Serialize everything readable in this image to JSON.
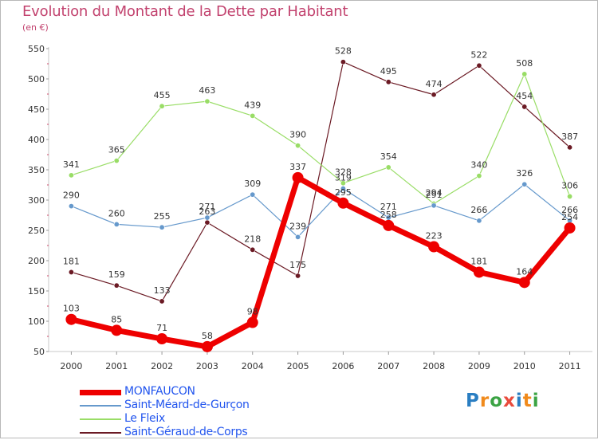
{
  "title": "Evolution du Montant de la Dette par Habitant",
  "unit": "(en €)",
  "logo_text": "Proxiti",
  "chart_data": {
    "type": "line",
    "title": "Evolution du Montant de la Dette par Habitant",
    "ylabel": "(en €)",
    "x": [
      "2000",
      "2001",
      "2002",
      "2003",
      "2004",
      "2005",
      "2006",
      "2007",
      "2008",
      "2009",
      "2010",
      "2011"
    ],
    "ylim": [
      50,
      550
    ],
    "yticks": [
      50,
      100,
      150,
      200,
      250,
      300,
      350,
      400,
      450,
      500,
      550
    ],
    "grid": false,
    "legend_position": "bottom-left",
    "series": [
      {
        "name": "Saint-Géraud-de-Corps",
        "color": "#6b1a24",
        "width": 1.2,
        "marker": 3.2,
        "values": [
          181,
          159,
          133,
          263,
          218,
          175,
          528,
          495,
          474,
          522,
          454,
          387
        ],
        "labels": [
          "181",
          "159",
          "133",
          "263",
          "218",
          "175",
          "528",
          "495",
          "474",
          "522",
          "454",
          "387"
        ]
      },
      {
        "name": "Le Fleix",
        "color": "#99dd66",
        "width": 1.2,
        "marker": 3.2,
        "values": [
          341,
          365,
          455,
          463,
          439,
          390,
          328,
          354,
          294,
          340,
          508,
          306
        ],
        "labels": [
          "341",
          "365",
          "455",
          "463",
          "439",
          "390",
          "328",
          "354",
          "294",
          "340",
          "508",
          "306"
        ]
      },
      {
        "name": "Saint-Méard-de-Gurçon",
        "color": "#6699cc",
        "width": 1.2,
        "marker": 3.2,
        "values": [
          290,
          260,
          255,
          271,
          309,
          239,
          319,
          271,
          291,
          266,
          326,
          266
        ],
        "labels": [
          "290",
          "260",
          "255",
          "271",
          "309",
          "239",
          "319",
          "271",
          "291",
          "266",
          "326",
          "266"
        ]
      },
      {
        "name": "MONFAUCON",
        "color": "#ee0000",
        "width": 7,
        "marker": 7,
        "values": [
          103,
          85,
          71,
          58,
          98,
          337,
          295,
          258,
          223,
          181,
          164,
          254
        ],
        "labels": [
          "103",
          "85",
          "71",
          "58",
          "98",
          "337",
          "295",
          "258",
          "223",
          "181",
          "164",
          "254"
        ]
      }
    ]
  },
  "legend": [
    {
      "name": "MONFAUCON",
      "color": "#ee0000",
      "text_color": "#2255ee",
      "thickness": 7
    },
    {
      "name": "Saint-Méard-de-Gurçon",
      "color": "#6699cc",
      "text_color": "#2255ee",
      "thickness": 2
    },
    {
      "name": "Le Fleix",
      "color": "#99dd66",
      "text_color": "#2255ee",
      "thickness": 2
    },
    {
      "name": "Saint-Géraud-de-Corps",
      "color": "#6b1a24",
      "text_color": "#2255ee",
      "thickness": 2
    }
  ]
}
